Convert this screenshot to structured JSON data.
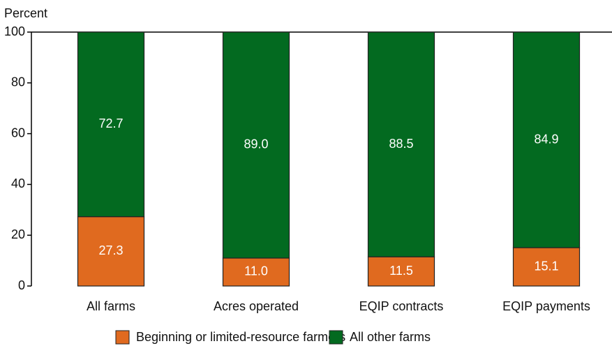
{
  "chart_data": {
    "type": "bar",
    "stacked": true,
    "ylabel": "Percent",
    "categories": [
      "All farms",
      "Acres operated",
      "EQIP contracts",
      "EQIP payments"
    ],
    "series": [
      {
        "name": "Beginning or limited-resource farmers",
        "color": "#e06a1f",
        "values": [
          27.3,
          11.0,
          11.5,
          15.1
        ],
        "value_labels": [
          "27.3",
          "11.0",
          "11.5",
          "15.1"
        ]
      },
      {
        "name": "All other farms",
        "color": "#036a20",
        "values": [
          72.7,
          89.0,
          88.5,
          84.9
        ],
        "value_labels": [
          "72.7",
          "89.0",
          "88.5",
          "84.9"
        ]
      }
    ],
    "ylim": [
      0,
      100
    ],
    "yticks": [
      0,
      20,
      40,
      60,
      80,
      100
    ]
  }
}
